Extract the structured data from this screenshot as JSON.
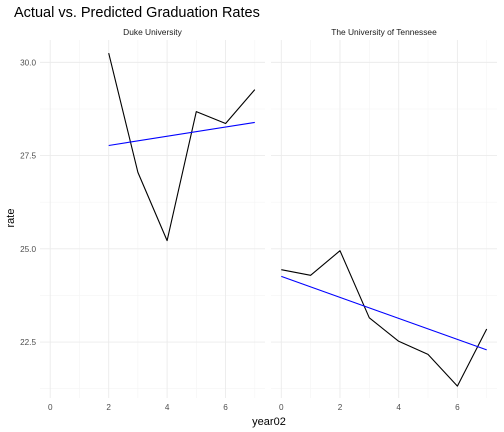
{
  "chart_data": {
    "type": "line",
    "title": "Actual vs. Predicted Graduation Rates",
    "xlabel": "year02",
    "ylabel": "rate",
    "ylim": [
      21.0,
      30.6
    ],
    "y_ticks": [
      "22.5",
      "25.0",
      "27.5",
      "30.0"
    ],
    "y_tick_values": [
      22.5,
      25.0,
      27.5,
      30.0
    ],
    "grid": true,
    "legend": "none",
    "facets": [
      {
        "name": "Duke University",
        "xlim": [
          -0.35,
          7.35
        ],
        "x_ticks": [
          "0",
          "2",
          "4",
          "6"
        ],
        "x_tick_values": [
          0,
          2,
          4,
          6
        ],
        "series": [
          {
            "color": "#000000",
            "x": [
              2,
              3,
              4,
              5,
              6,
              7
            ],
            "y": [
              30.25,
              27.05,
              25.22,
              28.68,
              28.36,
              29.27
            ]
          },
          {
            "color": "#0000ff",
            "x": [
              2,
              7
            ],
            "y": [
              27.77,
              28.39
            ]
          }
        ]
      },
      {
        "name": "The University of Tennessee",
        "xlim": [
          -0.35,
          7.35
        ],
        "x_ticks": [
          "0",
          "2",
          "4",
          "6"
        ],
        "x_tick_values": [
          0,
          2,
          4,
          6
        ],
        "series": [
          {
            "color": "#000000",
            "x": [
              0,
              1,
              2,
              3,
              4,
              5,
              6,
              7
            ],
            "y": [
              24.44,
              24.29,
              24.95,
              23.15,
              22.52,
              22.17,
              21.32,
              22.85
            ]
          },
          {
            "color": "#0000ff",
            "x": [
              0,
              7
            ],
            "y": [
              24.26,
              22.29
            ]
          }
        ]
      }
    ]
  }
}
